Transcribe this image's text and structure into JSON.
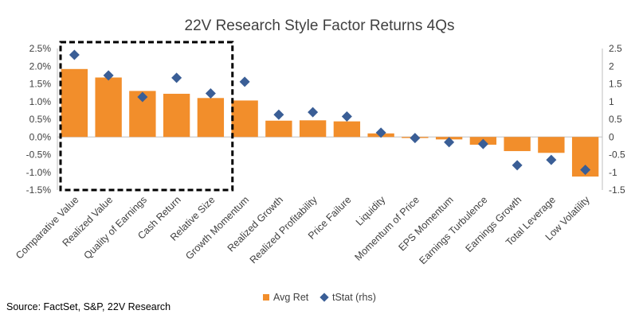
{
  "chart_data": {
    "type": "bar",
    "title": "22V Research Style Factor Returns 4Qs",
    "categories": [
      "Comparative Value",
      "Realized Value",
      "Quality of Earnings",
      "Cash Return",
      "Relative Size",
      "Growth Momentum",
      "Realized Growth",
      "Realized Profitability",
      "Price Failure",
      "Liquidity",
      "Momentum of Price",
      "EPS Momentum",
      "Earnings Turbulence",
      "Earnings Growth",
      "Total Leverage",
      "Low Volatility"
    ],
    "series": [
      {
        "name": "Avg Ret",
        "type": "bar",
        "axis": "left",
        "values": [
          1.92,
          1.68,
          1.3,
          1.22,
          1.1,
          1.03,
          0.46,
          0.47,
          0.44,
          0.1,
          -0.03,
          -0.07,
          -0.22,
          -0.4,
          -0.45,
          -1.12
        ]
      },
      {
        "name": "tStat (rhs)",
        "type": "scatter",
        "axis": "right",
        "values": [
          2.32,
          1.74,
          1.13,
          1.67,
          1.23,
          1.56,
          0.63,
          0.7,
          0.58,
          0.12,
          -0.03,
          -0.15,
          -0.2,
          -0.8,
          -0.65,
          -0.93
        ]
      }
    ],
    "ylim_left": [
      -1.5,
      2.5
    ],
    "yticks_left": [
      "2.5%",
      "2.0%",
      "1.5%",
      "1.0%",
      "0.5%",
      "0.0%",
      "-0.5%",
      "-1.0%",
      "-1.5%"
    ],
    "ylim_right": [
      -1.5,
      2.5
    ],
    "yticks_right": [
      "2.5",
      "2",
      "1.5",
      "1",
      "0.5",
      "0",
      "-0.5",
      "-1",
      "-1.5"
    ],
    "highlight_box_categories": [
      "Comparative Value",
      "Realized Value",
      "Quality of Earnings",
      "Cash Return",
      "Relative Size"
    ],
    "grid": false,
    "legend_position": "bottom",
    "colors": {
      "bar": "#F28E2B",
      "marker": "#3A5E96",
      "axis": "#BFBFBF",
      "box": "#000000"
    }
  },
  "source": "Source: FactSet, S&P, 22V Research"
}
